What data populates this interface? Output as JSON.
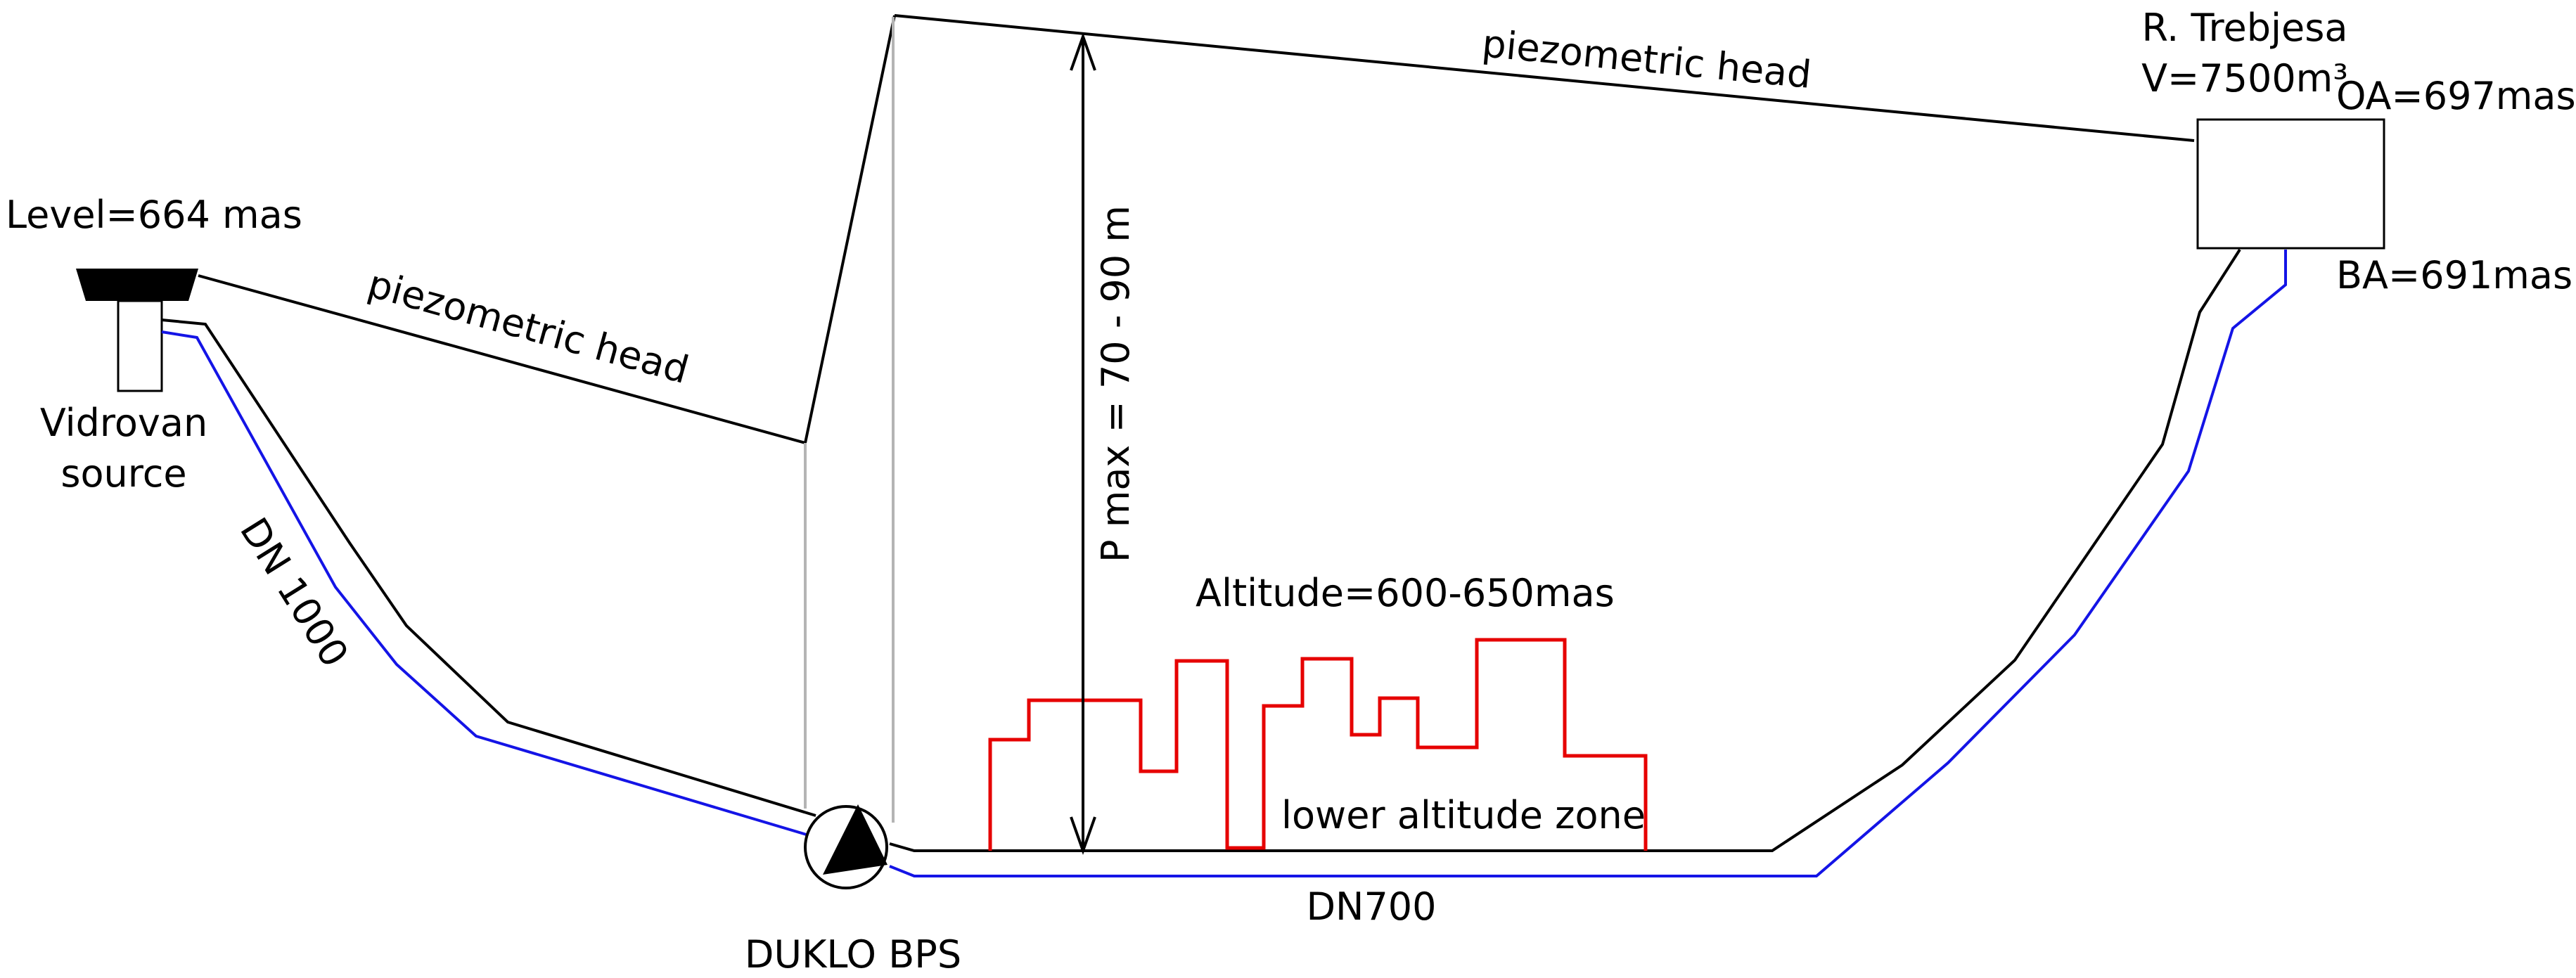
{
  "source": {
    "level_label": "Level=664 mas",
    "name_line1": "Vidrovan",
    "name_line2": "source"
  },
  "pipes": {
    "dn1000_label": "DN 1000",
    "dn700_label": "DN700"
  },
  "piezometric": {
    "head_label_left": "piezometric head",
    "head_label_right": "piezometric head"
  },
  "pump_station": {
    "name": "DUKLO BPS",
    "pressure_label": "P max = 70 - 90 m"
  },
  "zone": {
    "altitude_label": "Altitude=600-650mas",
    "zone_label": "lower altitude zone"
  },
  "reservoir": {
    "name": "R. Trebjesa",
    "volume": "V=7500m³",
    "oa_label": "OA=697mas",
    "ba_label": "BA=691mas"
  },
  "colors": {
    "main_line": "#000000",
    "pipe_blue": "#1414e6",
    "buildings_red": "#e60000",
    "guide_gray": "#b4b4b4"
  }
}
